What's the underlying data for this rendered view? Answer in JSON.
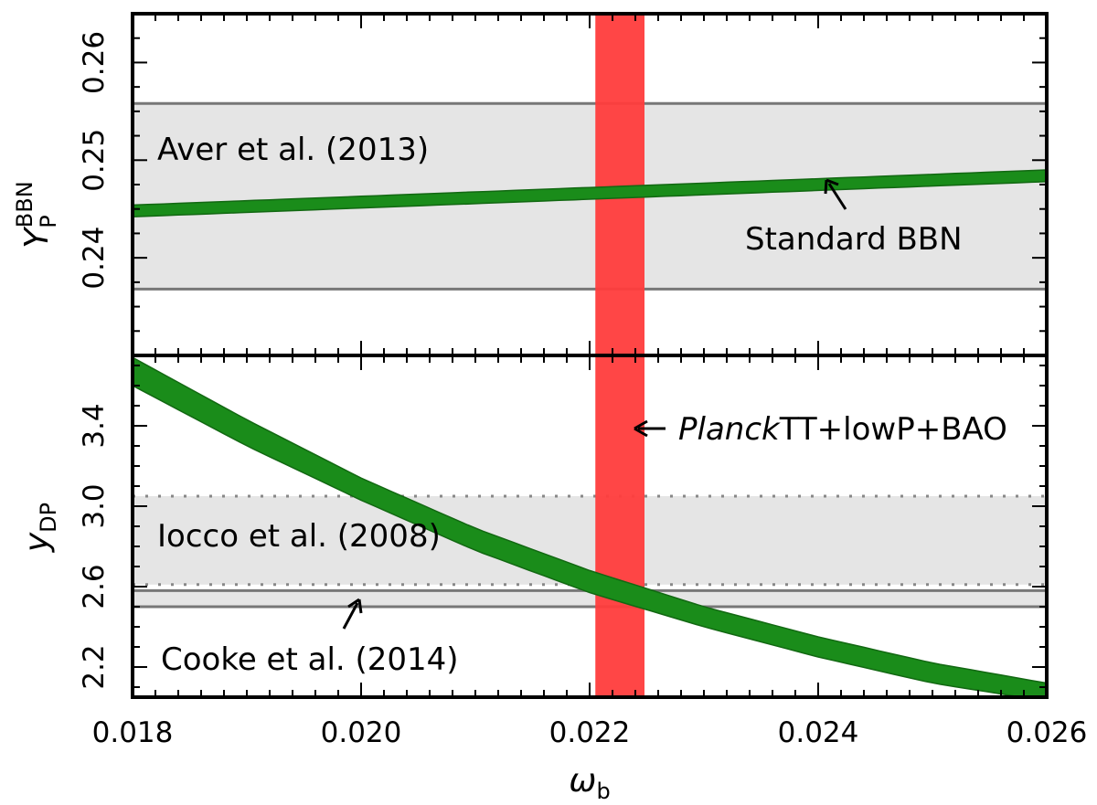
{
  "chart_data": [
    {
      "type": "line",
      "panel": "top",
      "ylabel": "Y_P^BBN",
      "ylabel_main": "Y",
      "ylabel_sub": "P",
      "ylabel_sup": "BBN",
      "xlim": [
        0.018,
        0.026
      ],
      "ylim": [
        0.23,
        0.265
      ],
      "yticks": [
        0.24,
        0.25,
        0.26
      ],
      "ytick_labels": [
        "0.24",
        "0.25",
        "0.26"
      ],
      "series": [
        {
          "name": "Standard BBN",
          "x": [
            0.018,
            0.026
          ],
          "y_low": [
            0.2442,
            0.2478
          ],
          "y_high": [
            0.2454,
            0.249
          ],
          "color": "#1a8c1a"
        }
      ],
      "bands": [
        {
          "name": "Aver et al. (2013)",
          "y_low": 0.2368,
          "y_high": 0.2558,
          "style": "solid",
          "fill": "#e5e5e5"
        }
      ],
      "vertical_bands": [
        {
          "name": "Planck TT+lowP+BAO",
          "x_low": 0.02205,
          "x_high": 0.02248,
          "color": "#ff3c3c"
        }
      ],
      "annotations": [
        {
          "text": "Aver et al. (2013)",
          "x": 0.0181,
          "y": 0.2512
        },
        {
          "text": "Standard BBN",
          "x": 0.0237,
          "y": 0.2418,
          "arrow_to": [
            0.02405,
            0.2478
          ]
        }
      ]
    },
    {
      "type": "line",
      "panel": "bottom",
      "ylabel": "y_DP",
      "ylabel_main": "y",
      "ylabel_sub": "DP",
      "xlabel": "ω_b",
      "xlabel_main": "ω",
      "xlabel_sub": "b",
      "xlim": [
        0.018,
        0.026
      ],
      "ylim": [
        2.05,
        3.75
      ],
      "yticks": [
        2.2,
        2.6,
        3.0,
        3.4
      ],
      "ytick_labels": [
        "2.2",
        "2.6",
        "3.0",
        "3.4"
      ],
      "xticks": [
        0.018,
        0.02,
        0.022,
        0.024,
        0.026
      ],
      "xtick_labels": [
        "0.018",
        "0.020",
        "0.022",
        "0.024",
        "0.026"
      ],
      "series": [
        {
          "name": "Standard BBN",
          "x": [
            0.018,
            0.019,
            0.02,
            0.021,
            0.022,
            0.023,
            0.024,
            0.025,
            0.026
          ],
          "y_low": [
            3.6,
            3.3,
            3.03,
            2.78,
            2.57,
            2.4,
            2.25,
            2.12,
            2.03
          ],
          "y_high": [
            3.74,
            3.43,
            3.14,
            2.89,
            2.68,
            2.5,
            2.35,
            2.22,
            2.12
          ],
          "color": "#1a8c1a"
        }
      ],
      "bands": [
        {
          "name": "Iocco et al. (2008)",
          "y_low": 2.61,
          "y_high": 3.05,
          "style": "dotted",
          "fill": "#e5e5e5"
        },
        {
          "name": "Cooke et al. (2014)",
          "y_low": 2.5,
          "y_high": 2.58,
          "style": "solid",
          "fill": "#e5e5e5"
        }
      ],
      "vertical_bands": [
        {
          "name": "Planck TT+lowP+BAO",
          "x_low": 0.02205,
          "x_high": 0.02248,
          "color": "#ff3c3c"
        }
      ],
      "annotations": [
        {
          "text": "Iocco et al. (2008)",
          "x": 0.0181,
          "y": 2.75
        },
        {
          "text": "Cooke et al. (2014)",
          "x": 0.0181,
          "y": 2.2
        },
        {
          "text_italic": "Planck",
          "text": "TT+lowP+BAO",
          "x": 0.02276,
          "y": 3.4,
          "arrow_to": [
            0.02245,
            3.4
          ]
        },
        {
          "arrow_from": [
            0.01985,
            2.37
          ],
          "arrow_to": [
            0.02,
            2.56
          ]
        }
      ]
    }
  ]
}
